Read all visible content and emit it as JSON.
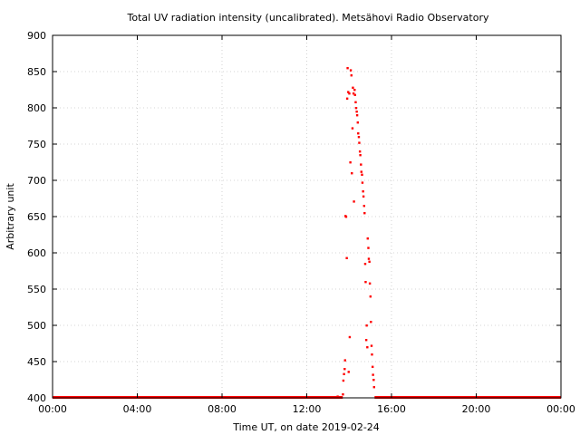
{
  "chart_data": {
    "type": "scatter",
    "title": "Total UV radiation intensity (uncalibrated). Metsähovi Radio Observatory",
    "xlabel": "Time UT, on date 2019-02-24",
    "ylabel": "Arbitrary unit",
    "xlim": [
      0,
      24
    ],
    "ylim": [
      400,
      900
    ],
    "x_ticks": [
      0,
      4,
      8,
      12,
      16,
      20,
      24
    ],
    "x_tick_labels": [
      "00:00",
      "04:00",
      "08:00",
      "12:00",
      "16:00",
      "20:00",
      "00:00"
    ],
    "y_ticks": [
      400,
      450,
      500,
      550,
      600,
      650,
      700,
      750,
      800,
      850,
      900
    ],
    "y_tick_labels": [
      "400",
      "450",
      "500",
      "550",
      "600",
      "650",
      "700",
      "750",
      "800",
      "850",
      "900"
    ],
    "grid": true,
    "marker_color": "#ff0000",
    "series": [
      {
        "baseline_value": 400,
        "baseline_ranges": [
          [
            0,
            13.7
          ],
          [
            15.2,
            24
          ]
        ],
        "x": [
          13.45,
          13.7,
          13.72,
          13.75,
          13.78,
          13.8,
          13.82,
          13.85,
          13.88,
          13.9,
          13.92,
          13.95,
          13.97,
          14.0,
          14.02,
          14.05,
          14.07,
          14.1,
          14.12,
          14.15,
          14.17,
          14.2,
          14.22,
          14.25,
          14.27,
          14.3,
          14.32,
          14.35,
          14.37,
          14.4,
          14.42,
          14.45,
          14.47,
          14.5,
          14.52,
          14.55,
          14.57,
          14.6,
          14.62,
          14.65,
          14.67,
          14.7,
          14.72,
          14.75,
          14.77,
          14.8,
          14.82,
          14.85,
          14.87,
          14.9,
          14.92,
          14.95,
          14.97,
          15.0,
          15.02,
          15.05,
          15.07,
          15.1,
          15.12,
          15.15,
          15.17
        ],
        "y": [
          402,
          405,
          424,
          433,
          440,
          452,
          651,
          650,
          593,
          813,
          855,
          822,
          436,
          820,
          484,
          725,
          852,
          845,
          710,
          772,
          828,
          820,
          671,
          825,
          818,
          808,
          800,
          795,
          790,
          780,
          765,
          760,
          752,
          740,
          735,
          722,
          712,
          708,
          697,
          685,
          678,
          665,
          655,
          585,
          560,
          480,
          500,
          470,
          620,
          607,
          592,
          588,
          558,
          540,
          505,
          472,
          460,
          443,
          432,
          425,
          415
        ]
      }
    ]
  }
}
